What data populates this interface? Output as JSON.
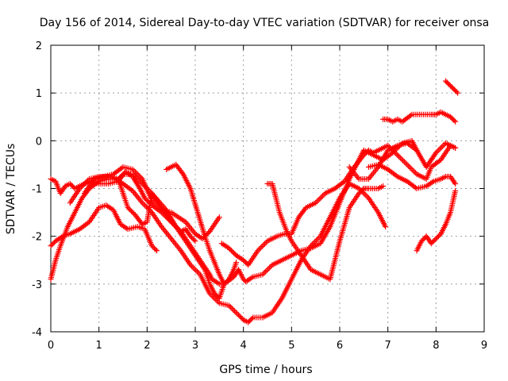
{
  "chart_data": {
    "type": "scatter",
    "title": "Day 156 of 2014, Sidereal Day-to-day VTEC variation (SDTVAR) for receiver onsa",
    "xlabel": "GPS time / hours",
    "ylabel": "SDTVAR / TECUs",
    "xlim": [
      0,
      9
    ],
    "ylim": [
      -4,
      2
    ],
    "xticks": [
      "0",
      "1",
      "2",
      "3",
      "4",
      "5",
      "6",
      "7",
      "8",
      "9"
    ],
    "yticks": [
      "-4",
      "-3",
      "-2",
      "-1",
      "0",
      "1",
      "2"
    ],
    "grid": true,
    "marker": "+",
    "color": "#ff0000",
    "series": [
      {
        "x": [
          0.0,
          0.1,
          0.2,
          0.3,
          0.4,
          0.5,
          0.6,
          0.8,
          1.0,
          1.2,
          1.4,
          1.55,
          1.7,
          1.85,
          1.95,
          2.1,
          2.3,
          2.5,
          2.7,
          2.9,
          3.1,
          3.2,
          3.3,
          3.35,
          3.5,
          3.6,
          3.7,
          3.8,
          3.85
        ],
        "y": [
          -0.8,
          -0.85,
          -1.1,
          -0.95,
          -0.9,
          -1.0,
          -0.95,
          -0.85,
          -0.9,
          -0.9,
          -0.85,
          -0.65,
          -0.75,
          -1.0,
          -1.2,
          -1.35,
          -1.5,
          -1.7,
          -1.9,
          -2.2,
          -2.5,
          -2.65,
          -2.8,
          -2.9,
          -3.0,
          -3.0,
          -2.9,
          -2.7,
          -2.55
        ]
      },
      {
        "x": [
          0.0,
          0.1,
          0.2,
          0.35,
          0.5,
          0.65,
          0.8,
          1.0,
          1.2,
          1.35,
          1.5,
          1.7,
          1.9,
          2.1,
          2.3,
          2.5,
          2.7,
          2.9,
          3.1,
          3.3,
          3.5,
          3.7,
          3.9,
          4.0,
          4.1,
          4.2,
          4.4,
          4.6,
          4.8,
          5.0,
          5.2,
          5.4,
          5.6,
          5.8,
          6.0,
          6.2,
          6.4,
          6.6,
          6.8,
          6.95
        ],
        "y": [
          -2.9,
          -2.5,
          -2.2,
          -1.8,
          -1.5,
          -1.2,
          -1.0,
          -0.85,
          -0.8,
          -0.8,
          -0.9,
          -1.05,
          -1.3,
          -1.5,
          -1.8,
          -2.05,
          -2.3,
          -2.6,
          -2.8,
          -3.2,
          -3.4,
          -3.45,
          -3.65,
          -3.75,
          -3.8,
          -3.7,
          -3.7,
          -3.6,
          -3.3,
          -2.9,
          -2.5,
          -2.2,
          -2.0,
          -1.6,
          -1.2,
          -0.9,
          -1.0,
          -1.2,
          -1.5,
          -1.8
        ]
      },
      {
        "x": [
          0.0,
          0.1,
          0.25,
          0.4,
          0.6,
          0.8,
          1.0,
          1.15,
          1.3,
          1.45,
          1.6,
          1.8,
          1.95,
          2.1,
          2.2
        ],
        "y": [
          -2.2,
          -2.1,
          -2.0,
          -1.95,
          -1.85,
          -1.7,
          -1.4,
          -1.35,
          -1.45,
          -1.75,
          -1.85,
          -1.8,
          -1.85,
          -2.2,
          -2.3
        ]
      },
      {
        "x": [
          0.4,
          0.6,
          0.8,
          1.0,
          1.2,
          1.4,
          1.5,
          1.7,
          1.9,
          2.1,
          2.4,
          2.6,
          2.8,
          3.0,
          3.2,
          3.3,
          3.4,
          3.5,
          3.6,
          3.8,
          3.9,
          4.0,
          4.05,
          4.2,
          4.4,
          4.6,
          4.8,
          5.0,
          5.2,
          5.4,
          5.6,
          5.8,
          6.0,
          6.2,
          6.35,
          6.5,
          6.7,
          6.9,
          7.1,
          7.3,
          7.5,
          7.6
        ],
        "y": [
          -1.3,
          -1.0,
          -0.8,
          -0.75,
          -0.75,
          -0.8,
          -0.7,
          -0.7,
          -0.9,
          -1.1,
          -1.45,
          -1.8,
          -2.1,
          -2.4,
          -2.7,
          -3.0,
          -3.2,
          -3.3,
          -3.0,
          -2.85,
          -2.7,
          -2.9,
          -2.95,
          -2.85,
          -2.8,
          -2.6,
          -2.5,
          -2.4,
          -2.3,
          -2.25,
          -2.15,
          -1.8,
          -1.3,
          -0.8,
          -0.5,
          -0.2,
          -0.3,
          -0.4,
          -0.25,
          -0.05,
          0.0,
          -0.2
        ]
      },
      {
        "x": [
          0.7,
          0.9,
          1.1,
          1.3,
          1.5,
          1.7,
          1.9,
          2.1,
          2.3,
          2.5,
          2.8,
          3.0,
          3.15,
          3.3,
          3.5
        ],
        "y": [
          -1.1,
          -0.8,
          -0.75,
          -0.7,
          -0.55,
          -0.6,
          -0.8,
          -1.25,
          -1.45,
          -1.5,
          -1.7,
          -1.95,
          -2.05,
          -1.9,
          -1.6
        ]
      },
      {
        "x": [
          2.4,
          2.5,
          2.6,
          2.75,
          2.9,
          3.05,
          3.2,
          3.3,
          3.4,
          3.5,
          3.6
        ],
        "y": [
          -0.6,
          -0.55,
          -0.5,
          -0.7,
          -1.0,
          -1.5,
          -2.0,
          -2.3,
          -2.55,
          -2.8,
          -3.0
        ]
      },
      {
        "x": [
          1.4,
          1.5,
          1.6,
          1.75,
          1.9,
          2.0,
          2.1,
          2.3,
          2.5,
          2.7,
          2.8,
          2.9,
          3.0
        ],
        "y": [
          -0.8,
          -1.1,
          -1.4,
          -1.55,
          -1.75,
          -1.7,
          -1.1,
          -1.4,
          -1.7,
          -1.9,
          -1.85,
          -2.0,
          -2.1
        ]
      },
      {
        "x": [
          3.55,
          3.7,
          3.85,
          4.0,
          4.1,
          4.3,
          4.5,
          4.7,
          4.85,
          5.0,
          5.15,
          5.3,
          5.5,
          5.7,
          5.9,
          6.1,
          6.3,
          6.5,
          6.6,
          6.7,
          6.9,
          7.0,
          7.2,
          7.4,
          7.6,
          7.8,
          7.9,
          8.1,
          8.3,
          8.4
        ],
        "y": [
          -2.15,
          -2.25,
          -2.4,
          -2.5,
          -2.6,
          -2.3,
          -2.1,
          -2.0,
          -1.95,
          -1.95,
          -1.6,
          -1.4,
          -1.3,
          -1.1,
          -1.0,
          -0.85,
          -0.55,
          -0.3,
          -0.2,
          -0.25,
          -0.15,
          -0.1,
          -0.3,
          -0.5,
          -0.7,
          -0.8,
          -0.55,
          -0.4,
          -0.1,
          -0.15
        ]
      },
      {
        "x": [
          4.5,
          4.6,
          4.75,
          4.9,
          5.0,
          5.2,
          5.4,
          5.6,
          5.8,
          6.0,
          6.2,
          6.4,
          6.5,
          6.6,
          6.8,
          6.9
        ],
        "y": [
          -0.9,
          -0.9,
          -1.5,
          -1.9,
          -2.1,
          -2.4,
          -2.7,
          -2.8,
          -2.9,
          -2.1,
          -1.4,
          -1.1,
          -1.0,
          -1.0,
          -1.0,
          -0.95
        ]
      },
      {
        "x": [
          6.2,
          6.4,
          6.6,
          6.8,
          7.0,
          7.2,
          7.4,
          7.6,
          7.8,
          7.9,
          8.0,
          8.2,
          8.3,
          8.4
        ],
        "y": [
          -0.55,
          -0.8,
          -0.8,
          -0.55,
          -0.2,
          -0.1,
          -0.05,
          -0.2,
          -0.55,
          -0.4,
          -0.25,
          -0.05,
          -0.1,
          -0.15
        ]
      },
      {
        "x": [
          6.6,
          6.8,
          7.0,
          7.2,
          7.4,
          7.6,
          7.8,
          7.95,
          8.1,
          8.2,
          8.3,
          8.4
        ],
        "y": [
          -0.55,
          -0.5,
          -0.6,
          -0.75,
          -0.85,
          -1.0,
          -0.95,
          -0.85,
          -0.8,
          -0.75,
          -0.75,
          -0.9
        ]
      },
      {
        "x": [
          6.9,
          7.0,
          7.1,
          7.2,
          7.3,
          7.5,
          7.7,
          7.9,
          8.0,
          8.1,
          8.2,
          8.3,
          8.4
        ],
        "y": [
          0.45,
          0.45,
          0.4,
          0.45,
          0.4,
          0.55,
          0.55,
          0.55,
          0.55,
          0.6,
          0.55,
          0.5,
          0.4
        ]
      },
      {
        "x": [
          8.2,
          8.25,
          8.3,
          8.35,
          8.4,
          8.45
        ],
        "y": [
          1.25,
          1.2,
          1.15,
          1.1,
          1.05,
          1.0
        ]
      },
      {
        "x": [
          7.6,
          7.7,
          7.8,
          7.9,
          8.0,
          8.1,
          8.2,
          8.3,
          8.4
        ],
        "y": [
          -2.3,
          -2.1,
          -2.0,
          -2.15,
          -2.05,
          -1.95,
          -1.75,
          -1.5,
          -1.05
        ]
      }
    ]
  }
}
